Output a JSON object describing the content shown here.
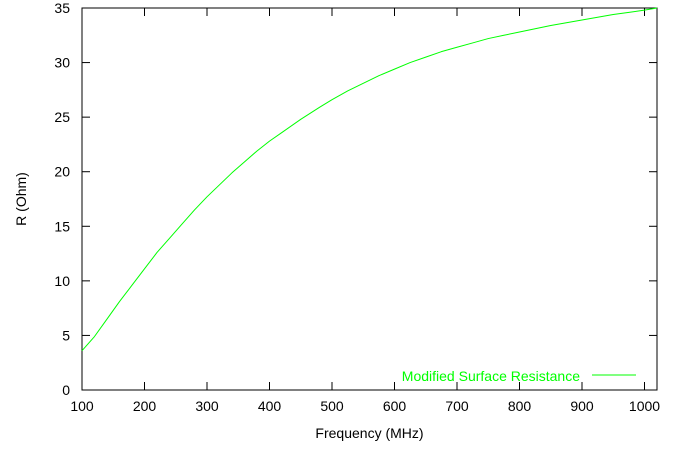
{
  "chart_data": {
    "type": "line",
    "title": "",
    "xlabel": "Frequency (MHz)",
    "ylabel": "R (Ohm)",
    "xlim": [
      100,
      1020
    ],
    "ylim": [
      0,
      35
    ],
    "x_ticks": [
      100,
      200,
      300,
      400,
      500,
      600,
      700,
      800,
      900,
      1000
    ],
    "y_ticks": [
      0,
      5,
      10,
      15,
      20,
      25,
      30,
      35
    ],
    "grid": false,
    "legend_position": "bottom-right",
    "series": [
      {
        "name": "Modified Surface Resistance",
        "color": "#00ff00",
        "x": [
          100,
          120,
          140,
          160,
          180,
          200,
          220,
          240,
          260,
          280,
          300,
          320,
          340,
          360,
          380,
          400,
          420,
          450,
          480,
          500,
          525,
          550,
          575,
          600,
          625,
          650,
          675,
          700,
          725,
          750,
          775,
          800,
          825,
          850,
          875,
          900,
          925,
          950,
          975,
          1000,
          1020
        ],
        "y": [
          3.6,
          4.9,
          6.5,
          8.1,
          9.6,
          11.1,
          12.6,
          13.9,
          15.2,
          16.5,
          17.7,
          18.8,
          19.9,
          20.9,
          21.9,
          22.8,
          23.6,
          24.8,
          25.9,
          26.6,
          27.4,
          28.1,
          28.8,
          29.4,
          30.0,
          30.5,
          31.0,
          31.4,
          31.8,
          32.2,
          32.5,
          32.8,
          33.1,
          33.4,
          33.65,
          33.9,
          34.15,
          34.4,
          34.6,
          34.8,
          35.0
        ]
      }
    ]
  }
}
